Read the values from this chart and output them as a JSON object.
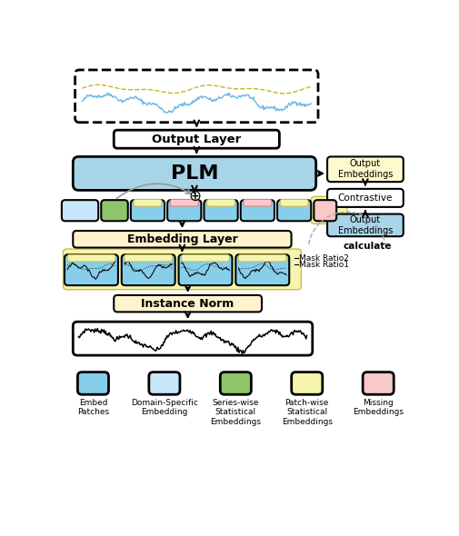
{
  "colors": {
    "blue_embed": "#87CEEB",
    "blue_light": "#C8E6FA",
    "green_series": "#8DC66B",
    "yellow_patch": "#F5F5B0",
    "pink_missing": "#F9C8C8",
    "yellow_box": "#FFF3CD",
    "plm_blue": "#A8D4E8",
    "output_yellow": "#FFFACD",
    "white": "#FFFFFF",
    "bg": "#FFFFFF"
  },
  "legend_items": [
    {
      "label": "Embed\nPatches",
      "color": "#87CEEB"
    },
    {
      "label": "Domain-Specific\nEmbedding",
      "color": "#C8E6FA"
    },
    {
      "label": "Series-wise\nStatistical\nEmbeddings",
      "color": "#8DC66B"
    },
    {
      "label": "Patch-wise\nStatistical\nEmbeddings",
      "color": "#F5F5B0"
    },
    {
      "label": "Missing\nEmbeddings",
      "color": "#F9C8C8"
    }
  ]
}
